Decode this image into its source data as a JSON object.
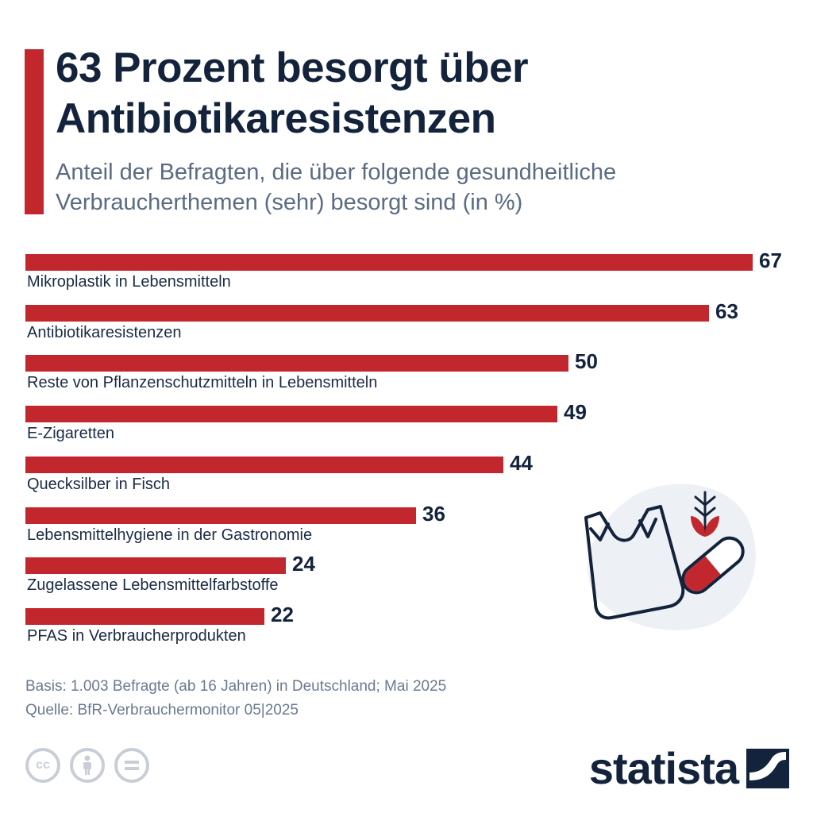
{
  "header": {
    "title": "63 Prozent besorgt über Antibiotikaresistenzen",
    "subtitle": "Anteil der Befragten, die über folgende gesundheitliche Verbraucherthemen (sehr) besorgt sind (in %)"
  },
  "colors": {
    "accent": "#c1272d",
    "title": "#14233c",
    "subtitle": "#5a6b82",
    "footer": "#6b7a90"
  },
  "chart_data": {
    "type": "bar",
    "orientation": "horizontal",
    "title": "63 Prozent besorgt über Antibiotikaresistenzen",
    "subtitle": "Anteil der Befragten, die über folgende gesundheitliche Verbraucherthemen (sehr) besorgt sind (in %)",
    "xlabel": "",
    "ylabel": "",
    "xlim": [
      0,
      67
    ],
    "grid": false,
    "categories": [
      "Mikroplastik in Lebensmitteln",
      "Antibiotikaresistenzen",
      "Reste von Pflanzenschutzmitteln in Lebensmitteln",
      "E-Zigaretten",
      "Quecksilber in Fisch",
      "Lebensmittelhygiene in der Gastronomie",
      "Zugelassene Lebensmittelfarbstoffe",
      "PFAS in Verbraucherprodukten"
    ],
    "values": [
      67,
      63,
      50,
      49,
      44,
      36,
      24,
      22
    ]
  },
  "footer": {
    "basis": "Basis: 1.003 Befragte (ab 16 Jahren) in Deutschland; Mai 2025",
    "source": "Quelle: BfR-Verbrauchermonitor 05|2025"
  },
  "license": {
    "cc": "cc"
  },
  "brand": {
    "name": "statista"
  },
  "icons": {
    "illustration": "plastic-bag-pill-plant-illustration",
    "license": [
      "cc-icon",
      "attribution-icon",
      "no-derivatives-icon"
    ],
    "logo": "statista-logo-icon"
  }
}
